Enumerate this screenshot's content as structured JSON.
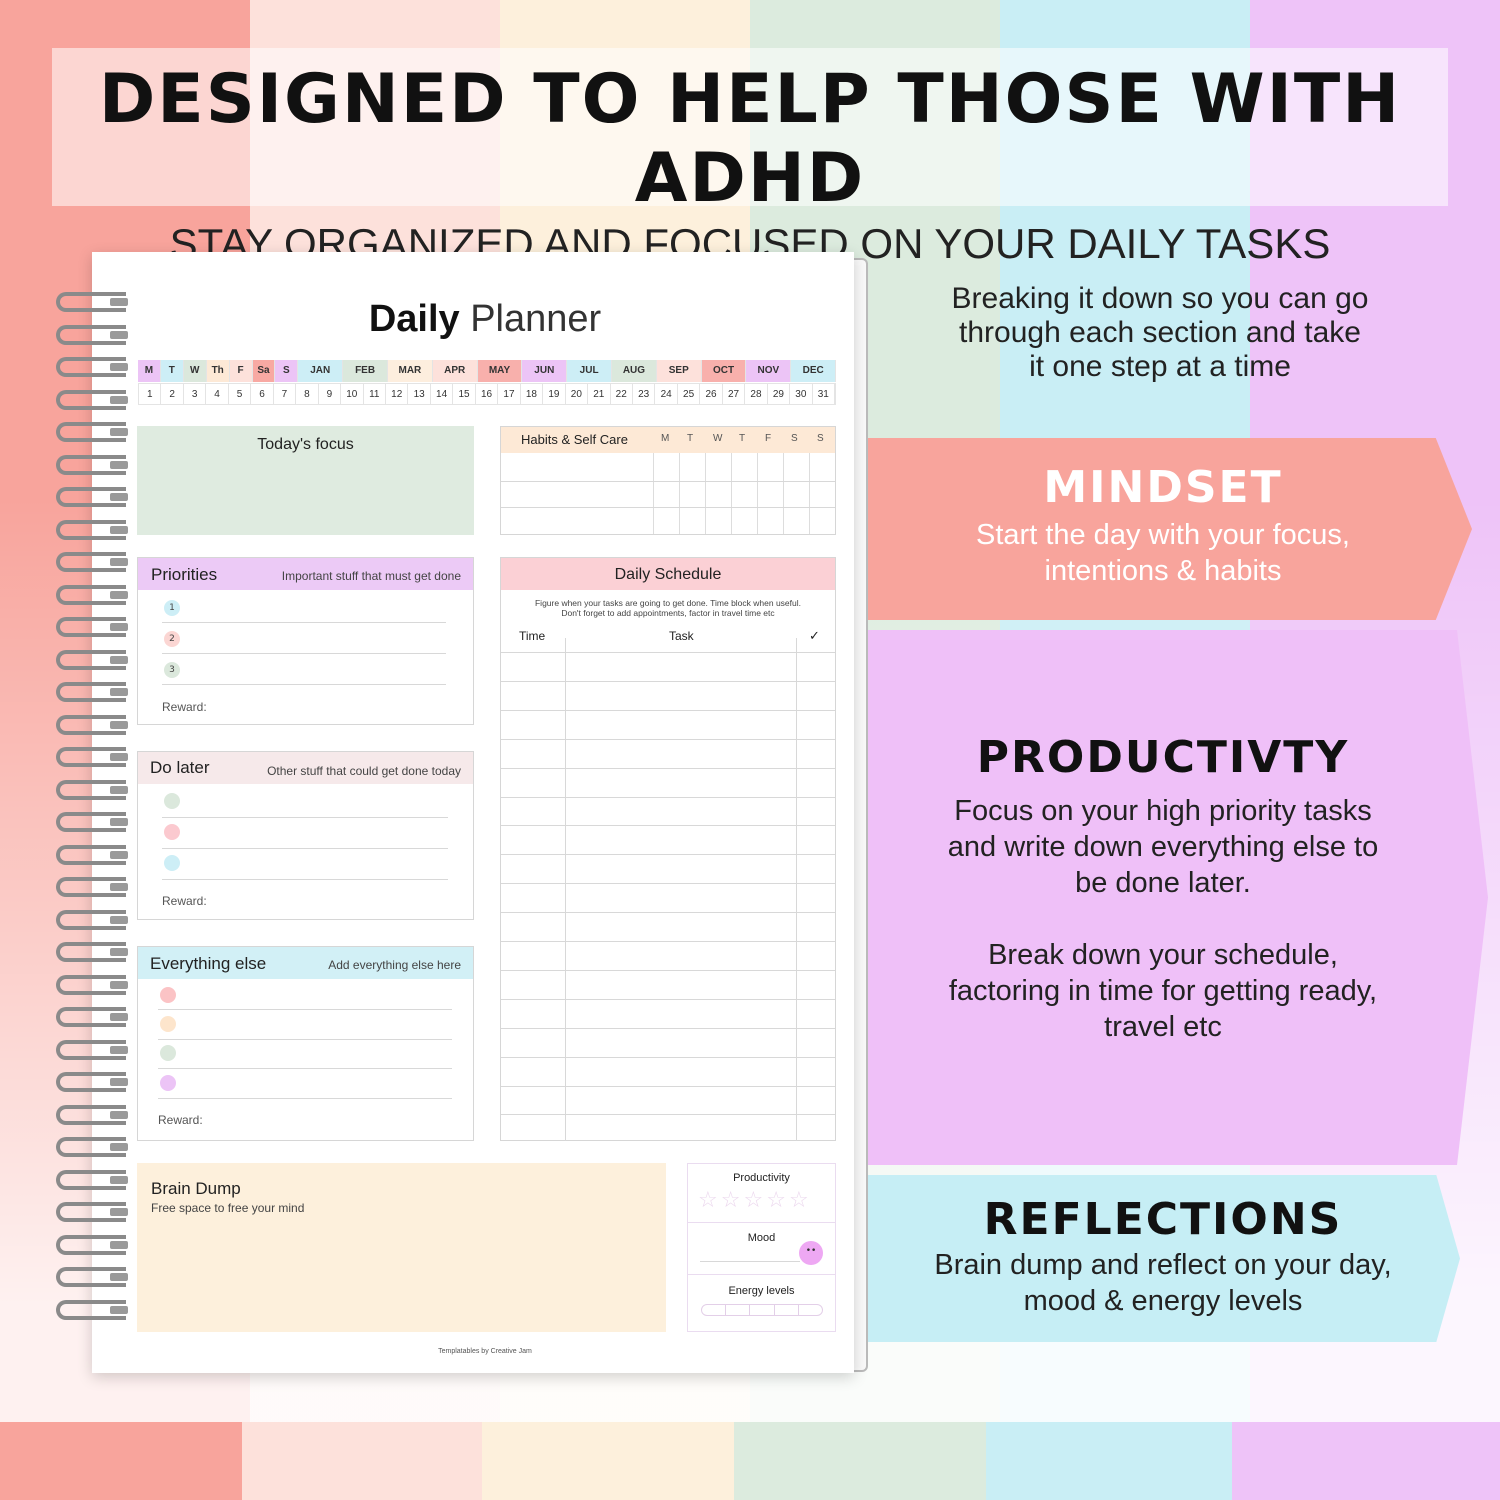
{
  "colors": {
    "salmon": "#f8a49c",
    "pink": "#fde1db",
    "cream": "#fdf0dc",
    "mint": "#dcebde",
    "blue": "#c9eef5",
    "lavender": "#eec3f8"
  },
  "banner": {
    "title": "DESIGNED TO HELP THOSE WITH ADHD",
    "subtitle": "STAY ORGANIZED AND FOCUSED ON YOUR DAILY TASKS"
  },
  "planner": {
    "title_bold": "Daily",
    "title_light": "Planner",
    "weekdays": [
      "M",
      "T",
      "W",
      "Th",
      "F",
      "Sa",
      "S"
    ],
    "months": [
      "JAN",
      "FEB",
      "MAR",
      "APR",
      "MAY",
      "JUN",
      "JUL",
      "AUG",
      "SEP",
      "OCT",
      "NOV",
      "DEC"
    ],
    "days": [
      "1",
      "2",
      "3",
      "4",
      "5",
      "6",
      "7",
      "8",
      "9",
      "10",
      "11",
      "12",
      "13",
      "14",
      "15",
      "16",
      "17",
      "18",
      "19",
      "20",
      "21",
      "22",
      "23",
      "24",
      "25",
      "26",
      "27",
      "28",
      "29",
      "30",
      "31"
    ],
    "focus": {
      "title": "Today's focus"
    },
    "habits": {
      "title": "Habits & Self Care",
      "days": [
        "M",
        "T",
        "W",
        "T",
        "F",
        "S",
        "S"
      ]
    },
    "priorities": {
      "title": "Priorities",
      "subtitle": "Important stuff that must get done",
      "items": [
        "1",
        "2",
        "3"
      ],
      "reward": "Reward:"
    },
    "do_later": {
      "title": "Do later",
      "subtitle": "Other stuff that could get done today",
      "reward": "Reward:"
    },
    "everything_else": {
      "title": "Everything else",
      "subtitle": "Add everything else here",
      "reward": "Reward:"
    },
    "schedule": {
      "title": "Daily Schedule",
      "desc1": "Figure when your tasks are going to get done. Time block when useful.",
      "desc2": "Don't forget to add appointments, factor in travel time etc",
      "col_time": "Time",
      "col_task": "Task",
      "col_check": "✓"
    },
    "brain_dump": {
      "title": "Brain Dump",
      "subtitle": "Free space to free your mind"
    },
    "reflection": {
      "productivity": "Productivity",
      "productivity_stars": 0,
      "mood": "Mood",
      "energy": "Energy levels",
      "energy_level": 0
    },
    "footer": "Templatables by Creative Jam"
  },
  "right": {
    "intro": [
      "Breaking it down so you can go",
      "through each section and take",
      "it one step at a time"
    ],
    "mindset": {
      "title": "MINDSET",
      "text": [
        "Start the day with your focus,",
        "intentions & habits"
      ]
    },
    "productivity": {
      "title": "PRODUCTIVTY",
      "text": [
        "Focus on your high priority tasks",
        "and write down everything else to",
        "be done later."
      ],
      "text2": [
        "Break down your schedule,",
        "factoring in time for getting ready,",
        "travel etc"
      ]
    },
    "reflections": {
      "title": "REFLECTIONS",
      "text": [
        "Brain dump and reflect on your day,",
        "mood & energy levels"
      ]
    }
  }
}
